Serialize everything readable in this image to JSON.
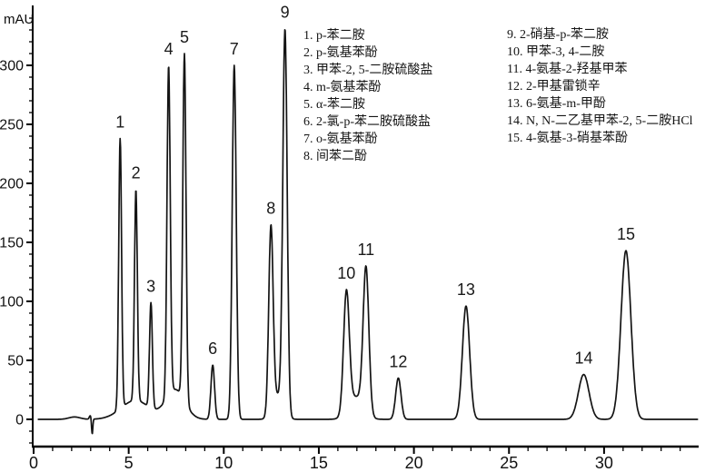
{
  "chart_data": {
    "type": "line",
    "subtype": "chromatogram",
    "title": "",
    "ylabel": "mAU",
    "xlabel": "",
    "xlim": [
      0,
      35
    ],
    "ylim": [
      -23,
      351
    ],
    "x_major_ticks": [
      0,
      5,
      10,
      15,
      20,
      25,
      30
    ],
    "x_minor_step_min": 1,
    "x_minor_last": 34,
    "y_major_ticks": [
      0,
      50,
      100,
      150,
      200,
      250,
      300
    ],
    "y_minor_step_mau": 10,
    "y_minor_range": [
      -20,
      340
    ],
    "grid": "off",
    "legend_position": "inside-top-right",
    "background_color": "#ffffff",
    "axis_color": "#000000",
    "trace_color": "#141414",
    "text_color": "#111111",
    "peaks": [
      {
        "id": 1,
        "rt_min": 4.55,
        "height_mau": 238,
        "sigma_min": 0.075
      },
      {
        "id": 2,
        "rt_min": 5.38,
        "height_mau": 195,
        "sigma_min": 0.075
      },
      {
        "id": 3,
        "rt_min": 6.17,
        "height_mau": 99,
        "sigma_min": 0.075
      },
      {
        "id": 4,
        "rt_min": 7.1,
        "height_mau": 300,
        "sigma_min": 0.085
      },
      {
        "id": 5,
        "rt_min": 7.93,
        "height_mau": 310,
        "sigma_min": 0.085
      },
      {
        "id": 6,
        "rt_min": 9.42,
        "height_mau": 46,
        "sigma_min": 0.095
      },
      {
        "id": 7,
        "rt_min": 10.55,
        "height_mau": 300,
        "sigma_min": 0.105
      },
      {
        "id": 8,
        "rt_min": 12.48,
        "height_mau": 165,
        "sigma_min": 0.115
      },
      {
        "id": 9,
        "rt_min": 13.22,
        "height_mau": 331,
        "sigma_min": 0.115
      },
      {
        "id": 10,
        "rt_min": 16.45,
        "height_mau": 110,
        "sigma_min": 0.15
      },
      {
        "id": 11,
        "rt_min": 17.48,
        "height_mau": 130,
        "sigma_min": 0.15
      },
      {
        "id": 12,
        "rt_min": 19.18,
        "height_mau": 35,
        "sigma_min": 0.14
      },
      {
        "id": 13,
        "rt_min": 22.74,
        "height_mau": 96,
        "sigma_min": 0.19
      },
      {
        "id": 14,
        "rt_min": 28.93,
        "height_mau": 38,
        "sigma_min": 0.28
      },
      {
        "id": 15,
        "rt_min": 31.15,
        "height_mau": 143,
        "sigma_min": 0.26
      }
    ],
    "baseline_features": [
      {
        "t": 2.15,
        "h": 2,
        "sigma": 0.3
      },
      {
        "t": 2.98,
        "h": 3,
        "sigma": 0.05
      },
      {
        "t": 3.08,
        "h": -13,
        "sigma": 0.033
      },
      {
        "t": 5.35,
        "h": 16,
        "sigma": 0.75
      },
      {
        "t": 7.45,
        "h": 25,
        "sigma": 0.5
      },
      {
        "t": 12.85,
        "h": 20,
        "sigma": 0.28
      },
      {
        "t": 16.95,
        "h": 19,
        "sigma": 0.4
      }
    ],
    "legend_columns": [
      [
        "1. p-苯二胺",
        "2. p-氨基苯酚",
        "3. 甲苯-2, 5-二胺硫酸盐",
        "4. m-氨基苯酚",
        "5. α-苯二胺",
        "6. 2-氯-p-苯二胺硫酸盐",
        "7. o-氨基苯酚",
        "8. 间苯二酚"
      ],
      [
        "9. 2-硝基-p-苯二胺",
        "10. 甲苯-3, 4-二胺",
        "11. 4-氨基-2-羟基甲苯",
        "12. 2-甲基雷锁辛",
        "13. 6-氨基-m-甲酚",
        "14. N, N-二乙基甲苯-2, 5-二胺HCl",
        "15. 4-氨基-3-硝基苯酚"
      ]
    ]
  }
}
